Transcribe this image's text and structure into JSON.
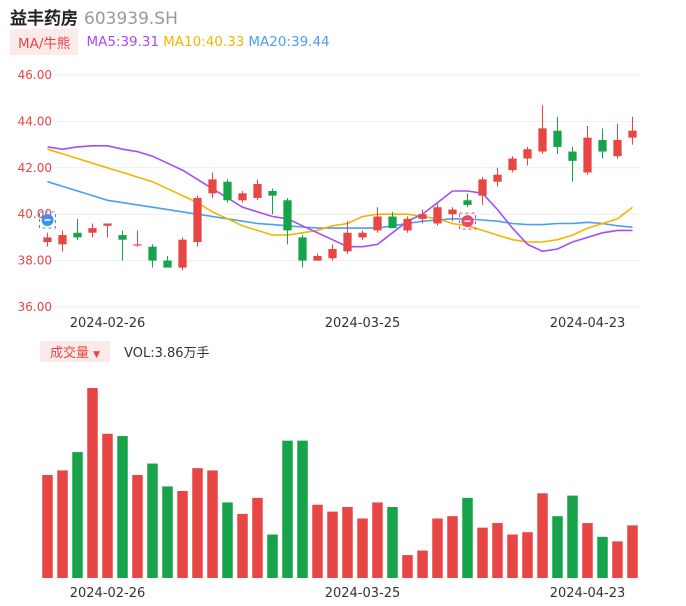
{
  "header": {
    "name": "益丰药房",
    "code": "603939.SH"
  },
  "ma_legend": {
    "tag": "MA/牛熊",
    "items": [
      {
        "label": "MA5:39.31",
        "color": "#a64cf0"
      },
      {
        "label": "MA10:40.33",
        "color": "#f2b600"
      },
      {
        "label": "MA20:39.44",
        "color": "#4a9ff0"
      }
    ]
  },
  "volume_legend": {
    "tag": "成交量",
    "value_text": "VOL:3.86万手"
  },
  "colors": {
    "up": "#e84545",
    "down": "#16a34a",
    "axis_text": "#e84545",
    "grid": "#eeeeee"
  },
  "chart_data": {
    "type": "candlestick",
    "y_ticks": [
      "46.00",
      "44.00",
      "42.00",
      "40.00",
      "38.00",
      "36.00"
    ],
    "ylim": [
      36,
      46
    ],
    "x_tick_labels": [
      {
        "label": "2024-02-26",
        "index": 4
      },
      {
        "label": "2024-03-25",
        "index": 21
      },
      {
        "label": "2024-04-23",
        "index": 36
      }
    ],
    "candles": [
      {
        "o": 38.8,
        "h": 39.2,
        "l": 38.6,
        "c": 39.0
      },
      {
        "o": 38.7,
        "h": 39.3,
        "l": 38.4,
        "c": 39.1
      },
      {
        "o": 39.2,
        "h": 39.8,
        "l": 38.9,
        "c": 39.0
      },
      {
        "o": 39.2,
        "h": 39.6,
        "l": 39.0,
        "c": 39.4
      },
      {
        "o": 39.5,
        "h": 39.6,
        "l": 39.0,
        "c": 39.6
      },
      {
        "o": 39.1,
        "h": 39.3,
        "l": 38.0,
        "c": 38.9
      },
      {
        "o": 38.7,
        "h": 39.3,
        "l": 38.6,
        "c": 38.7
      },
      {
        "o": 38.6,
        "h": 38.7,
        "l": 37.7,
        "c": 38.0
      },
      {
        "o": 38.0,
        "h": 38.2,
        "l": 37.7,
        "c": 37.7
      },
      {
        "o": 37.7,
        "h": 39.0,
        "l": 37.6,
        "c": 38.9
      },
      {
        "o": 38.8,
        "h": 40.8,
        "l": 38.6,
        "c": 40.7
      },
      {
        "o": 40.9,
        "h": 41.8,
        "l": 40.7,
        "c": 41.5
      },
      {
        "o": 41.4,
        "h": 41.5,
        "l": 40.5,
        "c": 40.6
      },
      {
        "o": 40.6,
        "h": 41.0,
        "l": 40.5,
        "c": 40.9
      },
      {
        "o": 40.7,
        "h": 41.5,
        "l": 40.6,
        "c": 41.3
      },
      {
        "o": 41.0,
        "h": 41.1,
        "l": 40.0,
        "c": 40.8
      },
      {
        "o": 40.6,
        "h": 40.7,
        "l": 38.7,
        "c": 39.3
      },
      {
        "o": 39.0,
        "h": 39.1,
        "l": 37.7,
        "c": 38.0
      },
      {
        "o": 38.0,
        "h": 38.3,
        "l": 38.0,
        "c": 38.2
      },
      {
        "o": 38.1,
        "h": 38.7,
        "l": 38.0,
        "c": 38.5
      },
      {
        "o": 38.4,
        "h": 39.7,
        "l": 38.3,
        "c": 39.2
      },
      {
        "o": 39.0,
        "h": 39.3,
        "l": 38.9,
        "c": 39.2
      },
      {
        "o": 39.3,
        "h": 40.3,
        "l": 39.2,
        "c": 39.9
      },
      {
        "o": 39.9,
        "h": 40.1,
        "l": 39.4,
        "c": 39.4
      },
      {
        "o": 39.3,
        "h": 39.9,
        "l": 39.2,
        "c": 39.8
      },
      {
        "o": 39.8,
        "h": 40.2,
        "l": 39.6,
        "c": 40.0
      },
      {
        "o": 39.6,
        "h": 40.5,
        "l": 39.5,
        "c": 40.3
      },
      {
        "o": 40.0,
        "h": 40.3,
        "l": 39.7,
        "c": 40.2
      },
      {
        "o": 40.6,
        "h": 40.9,
        "l": 40.3,
        "c": 40.4
      },
      {
        "o": 40.8,
        "h": 41.6,
        "l": 40.4,
        "c": 41.5
      },
      {
        "o": 41.4,
        "h": 42.0,
        "l": 41.2,
        "c": 41.7
      },
      {
        "o": 41.9,
        "h": 42.5,
        "l": 41.8,
        "c": 42.4
      },
      {
        "o": 42.4,
        "h": 42.9,
        "l": 42.1,
        "c": 42.8
      },
      {
        "o": 42.7,
        "h": 44.7,
        "l": 42.6,
        "c": 43.7
      },
      {
        "o": 43.6,
        "h": 44.2,
        "l": 42.6,
        "c": 42.9
      },
      {
        "o": 42.7,
        "h": 42.9,
        "l": 41.4,
        "c": 42.3
      },
      {
        "o": 41.8,
        "h": 43.8,
        "l": 41.7,
        "c": 43.3
      },
      {
        "o": 43.2,
        "h": 43.7,
        "l": 42.4,
        "c": 42.7
      },
      {
        "o": 42.5,
        "h": 43.9,
        "l": 42.4,
        "c": 43.2
      },
      {
        "o": 43.3,
        "h": 44.2,
        "l": 43.0,
        "c": 43.6
      }
    ],
    "ma5": [
      42.9,
      42.8,
      42.9,
      42.95,
      42.95,
      42.8,
      42.7,
      42.5,
      42.2,
      41.9,
      41.5,
      41.1,
      40.7,
      40.3,
      40.1,
      39.9,
      39.8,
      39.5,
      39.2,
      38.9,
      38.6,
      38.6,
      38.7,
      39.2,
      39.7,
      40.0,
      40.5,
      41.0,
      41.0,
      40.9,
      40.2,
      39.4,
      38.7,
      38.4,
      38.5,
      38.8,
      39.0,
      39.2,
      39.3,
      39.3
    ],
    "ma10": [
      42.8,
      42.6,
      42.4,
      42.2,
      42.0,
      41.8,
      41.6,
      41.4,
      41.1,
      40.8,
      40.5,
      40.1,
      39.8,
      39.5,
      39.3,
      39.1,
      39.1,
      39.2,
      39.3,
      39.5,
      39.6,
      39.9,
      40.0,
      40.0,
      40.0,
      39.9,
      39.8,
      39.6,
      39.5,
      39.3,
      39.1,
      38.9,
      38.8,
      38.8,
      38.9,
      39.1,
      39.4,
      39.6,
      39.8,
      40.3
    ],
    "ma20": [
      41.4,
      41.2,
      41.0,
      40.8,
      40.6,
      40.5,
      40.4,
      40.3,
      40.2,
      40.1,
      40.0,
      39.9,
      39.8,
      39.7,
      39.6,
      39.55,
      39.5,
      39.45,
      39.4,
      39.4,
      39.4,
      39.4,
      39.4,
      39.5,
      39.6,
      39.7,
      39.75,
      39.8,
      39.8,
      39.75,
      39.7,
      39.6,
      39.55,
      39.55,
      39.6,
      39.6,
      39.65,
      39.6,
      39.5,
      39.44
    ],
    "volume": [
      45,
      47,
      55,
      83,
      63,
      62,
      45,
      50,
      40,
      38,
      48,
      47,
      33,
      28,
      35,
      19,
      60,
      60,
      32,
      29,
      31,
      26,
      33,
      31,
      10,
      12,
      26,
      27,
      35,
      22,
      24,
      19,
      20,
      37,
      27,
      36,
      24,
      18,
      16,
      23
    ]
  }
}
